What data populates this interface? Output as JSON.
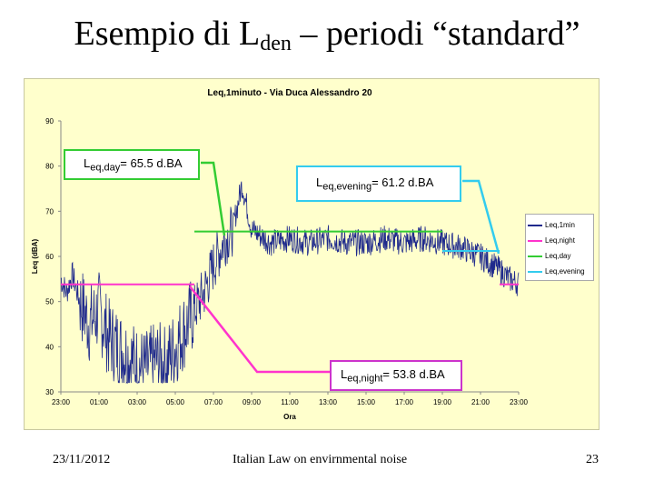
{
  "slide": {
    "title_main": "Esempio di L",
    "title_sub": "den",
    "title_rest": " – periodi “standard”",
    "footer_date": "23/11/2012",
    "footer_center": "Italian Law on envirnmental noise",
    "footer_page": "23"
  },
  "callouts": {
    "day": {
      "base": "L",
      "sub": "eq,day",
      "rest": "= 65.5 d.BA"
    },
    "evening": {
      "base": "L",
      "sub": "eq,evening",
      "rest": "= 61.2 d.BA"
    },
    "night": {
      "base": "L",
      "sub": "eq,night",
      "rest": "= 53.8 d.BA"
    }
  },
  "colors": {
    "background": "#ffffcc",
    "series_1min": "#1f2a8c",
    "night": "#ff33cc",
    "day": "#33cc33",
    "evening": "#33ccee"
  },
  "chart_data": {
    "type": "line",
    "title": "Leq,1minuto - Via Duca Alessandro 20",
    "xlabel": "Ora",
    "ylabel": "Leq (dBA)",
    "x_tick_labels": [
      "23:00",
      "01:00",
      "03:00",
      "05:00",
      "07:00",
      "09:00",
      "11:00",
      "13:00",
      "15:00",
      "17:00",
      "19:00",
      "21:00",
      "23:00"
    ],
    "x_range_hours": [
      0,
      24
    ],
    "ylim": [
      30,
      90
    ],
    "y_ticks": [
      30,
      40,
      50,
      60,
      70,
      80,
      90
    ],
    "grid": false,
    "legend_position": "right",
    "series": [
      {
        "name": "Leq,1min",
        "color": "#1f2a8c",
        "description_points": [
          [
            0,
            55
          ],
          [
            0.3,
            52
          ],
          [
            0.6,
            56
          ],
          [
            1,
            50
          ],
          [
            1.5,
            45
          ],
          [
            2,
            48
          ],
          [
            2.5,
            42
          ],
          [
            3,
            40
          ],
          [
            3.5,
            38
          ],
          [
            4,
            36
          ],
          [
            4.5,
            35
          ],
          [
            5,
            37
          ],
          [
            5.5,
            36
          ],
          [
            6,
            40
          ],
          [
            6.5,
            44
          ],
          [
            7,
            48
          ],
          [
            7.5,
            52
          ],
          [
            8,
            58
          ],
          [
            8.5,
            63
          ],
          [
            9,
            66
          ],
          [
            9.5,
            76
          ],
          [
            10,
            66
          ],
          [
            11,
            63
          ],
          [
            12,
            64
          ],
          [
            13,
            63
          ],
          [
            14,
            64
          ],
          [
            15,
            63
          ],
          [
            16,
            63
          ],
          [
            17,
            64
          ],
          [
            18,
            63
          ],
          [
            19,
            64
          ],
          [
            20,
            63
          ],
          [
            21,
            62
          ],
          [
            22,
            60
          ],
          [
            23,
            57
          ],
          [
            23.5,
            55
          ],
          [
            24,
            54
          ]
        ]
      },
      {
        "name": "Leq,night",
        "color": "#ff33cc",
        "segments": [
          [
            0,
            7,
            53.8
          ],
          [
            23,
            24,
            53.8
          ]
        ]
      },
      {
        "name": "Leq,day",
        "color": "#33cc33",
        "segments": [
          [
            7,
            20,
            65.5
          ]
        ]
      },
      {
        "name": "Leq,evening",
        "color": "#33ccee",
        "segments": [
          [
            20,
            23,
            61.2
          ]
        ]
      }
    ]
  }
}
